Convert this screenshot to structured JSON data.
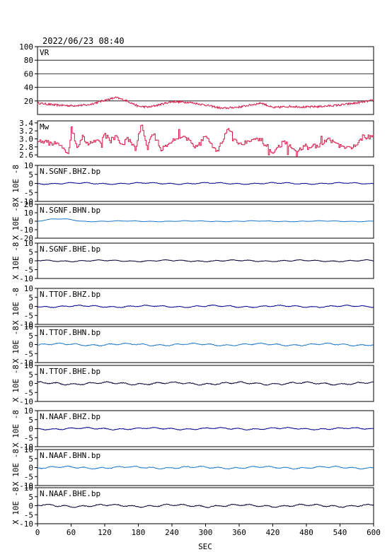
{
  "title": "2022/06/23 08:40",
  "xlabel": "SEC",
  "x_ticks": [
    "0",
    "60",
    "120",
    "180",
    "240",
    "300",
    "360",
    "420",
    "480",
    "540",
    "600"
  ],
  "x_range": [
    0,
    600
  ],
  "unit_label": "X 10E -8",
  "colors": {
    "vr": "#d9194a",
    "mw": "#d9194a",
    "bhz": "#00008b",
    "bhn": "#1e78c8",
    "bhe": "#000033"
  },
  "chart_data": [
    {
      "type": "line",
      "label": "VR",
      "ylim": [
        0,
        100
      ],
      "y_ticks": [
        "100",
        "80",
        "60",
        "40",
        "20"
      ],
      "grid": true,
      "x": [
        0,
        30,
        60,
        90,
        120,
        140,
        160,
        180,
        200,
        240,
        270,
        300,
        330,
        360,
        400,
        420,
        450,
        480,
        510,
        540,
        570,
        600
      ],
      "values": [
        17,
        14,
        13,
        14,
        21,
        25,
        20,
        12,
        11,
        19,
        18,
        14,
        9,
        11,
        17,
        10,
        12,
        11,
        12,
        14,
        17,
        21
      ]
    },
    {
      "type": "line",
      "label": "Mw",
      "ylim": [
        2.55,
        3.45
      ],
      "y_ticks": [
        "3.4",
        "3.2",
        "3.0",
        "2.8",
        "2.6"
      ],
      "grid": false,
      "x": [
        0,
        20,
        40,
        55,
        60,
        70,
        80,
        90,
        100,
        110,
        120,
        130,
        140,
        150,
        160,
        175,
        185,
        195,
        205,
        220,
        240,
        260,
        280,
        300,
        320,
        340,
        360,
        380,
        400,
        420,
        440,
        460,
        480,
        500,
        520,
        540,
        560,
        580,
        600
      ],
      "values": [
        2.95,
        2.9,
        2.85,
        2.65,
        3.3,
        2.8,
        3.05,
        2.85,
        3.0,
        2.9,
        3.1,
        2.95,
        3.05,
        2.85,
        3.0,
        2.75,
        3.4,
        2.75,
        3.15,
        2.75,
        2.95,
        3.1,
        2.8,
        3.05,
        2.7,
        3.25,
        2.85,
        3.0,
        2.95,
        2.65,
        2.95,
        2.65,
        2.85,
        2.8,
        3.0,
        2.8,
        2.75,
        3.05,
        3.05
      ]
    },
    {
      "type": "line",
      "label": "N.SGNF.BHZ.bp",
      "ylim": [
        -10,
        10
      ],
      "y_ticks": [
        "10",
        "5",
        "0",
        "-5",
        "-10"
      ],
      "amplitude": 0.5,
      "color_key": "bhz"
    },
    {
      "type": "line",
      "label": "N.SGNF.BHN.bp",
      "ylim": [
        -20,
        20
      ],
      "y_ticks": [
        "20",
        "10",
        "0",
        "-10",
        "-20"
      ],
      "amplitude": 0.6,
      "color_key": "bhn",
      "early_peak": 2.5
    },
    {
      "type": "line",
      "label": "N.SGNF.BHE.bp",
      "ylim": [
        -10,
        10
      ],
      "y_ticks": [
        "10",
        "5",
        "0",
        "-5",
        "-10"
      ],
      "amplitude": 0.5,
      "color_key": "bhe"
    },
    {
      "type": "line",
      "label": "N.TTOF.BHZ.bp",
      "ylim": [
        -10,
        10
      ],
      "y_ticks": [
        "10",
        "5",
        "0",
        "-5",
        "-10"
      ],
      "amplitude": 0.6,
      "color_key": "bhz"
    },
    {
      "type": "line",
      "label": "N.TTOF.BHN.bp",
      "ylim": [
        -10,
        10
      ],
      "y_ticks": [
        "10",
        "5",
        "0",
        "-5",
        "-10"
      ],
      "amplitude": 0.7,
      "color_key": "bhn"
    },
    {
      "type": "line",
      "label": "N.TTOF.BHE.bp",
      "ylim": [
        -10,
        10
      ],
      "y_ticks": [
        "10",
        "5",
        "0",
        "-5",
        "-10"
      ],
      "amplitude": 0.8,
      "color_key": "bhe"
    },
    {
      "type": "line",
      "label": "N.NAAF.BHZ.bp",
      "ylim": [
        -10,
        10
      ],
      "y_ticks": [
        "10",
        "5",
        "0",
        "-5",
        "-10"
      ],
      "amplitude": 0.6,
      "color_key": "bhz"
    },
    {
      "type": "line",
      "label": "N.NAAF.BHN.bp",
      "ylim": [
        -10,
        10
      ],
      "y_ticks": [
        "10",
        "5",
        "0",
        "-5",
        "-10"
      ],
      "amplitude": 0.7,
      "color_key": "bhn"
    },
    {
      "type": "line",
      "label": "N.NAAF.BHE.bp",
      "ylim": [
        -10,
        10
      ],
      "y_ticks": [
        "10",
        "5",
        "0",
        "-5",
        "-10"
      ],
      "amplitude": 0.8,
      "color_key": "bhe"
    }
  ]
}
